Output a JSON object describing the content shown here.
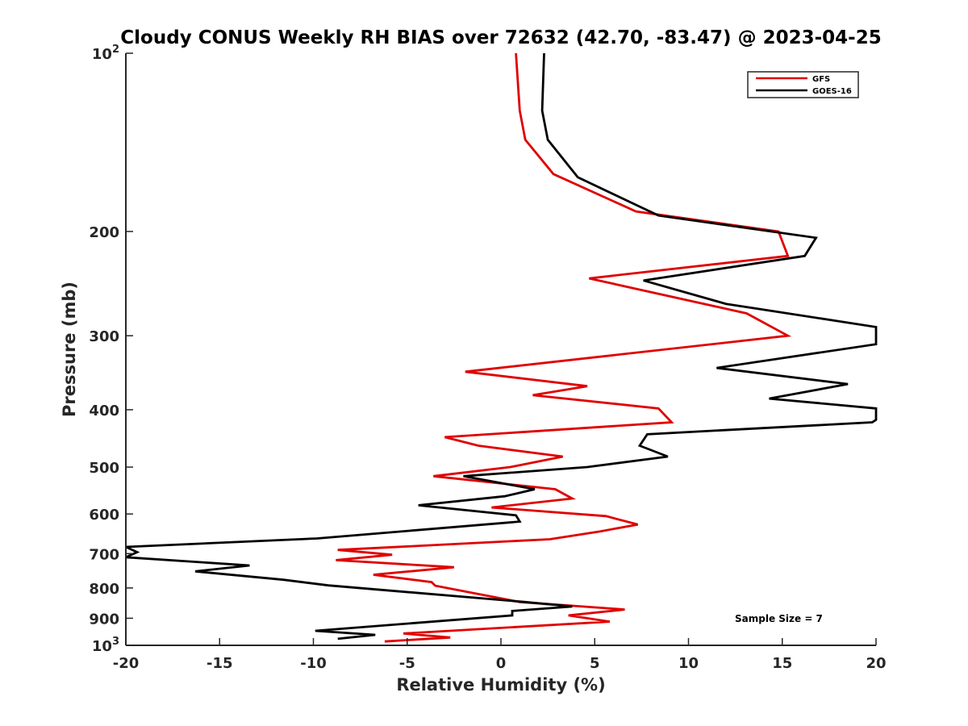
{
  "chart_data": {
    "type": "line",
    "title": "Cloudy CONUS Weekly RH BIAS over 72632 (42.70, -83.47) @ 2023-04-25",
    "xlabel": "Relative Humidity (%)",
    "ylabel": "Pressure (mb)",
    "xlim": [
      -20,
      20
    ],
    "ylim": [
      100,
      1000
    ],
    "y_scale": "log",
    "y_reversed": true,
    "grid": false,
    "legend_position": "top-right",
    "x_ticks": [
      "-20",
      "-15",
      "-10",
      "-5",
      "0",
      "5",
      "10",
      "15",
      "20"
    ],
    "y_ticks": [
      {
        "value": 100,
        "base": "10",
        "sup": "2"
      },
      {
        "value": 200,
        "label": "200"
      },
      {
        "value": 300,
        "label": "300"
      },
      {
        "value": 400,
        "label": "400"
      },
      {
        "value": 500,
        "label": "500"
      },
      {
        "value": 600,
        "label": "600"
      },
      {
        "value": 700,
        "label": "700"
      },
      {
        "value": 800,
        "label": "800"
      },
      {
        "value": 900,
        "label": "900"
      },
      {
        "value": 1000,
        "base": "10",
        "sup": "3"
      }
    ],
    "annotation": "Sample Size = 7",
    "series": [
      {
        "name": "GFS",
        "color": "#e00000",
        "points": [
          [
            0.8,
            100
          ],
          [
            1.0,
            125
          ],
          [
            1.3,
            140
          ],
          [
            2.8,
            160
          ],
          [
            7.2,
            185
          ],
          [
            14.8,
            200
          ],
          [
            15.3,
            220
          ],
          [
            4.7,
            240
          ],
          [
            13.1,
            275
          ],
          [
            15.3,
            300
          ],
          [
            -1.9,
            345
          ],
          [
            4.6,
            365
          ],
          [
            1.7,
            378
          ],
          [
            8.4,
            398
          ],
          [
            9.1,
            420
          ],
          [
            -3.0,
            445
          ],
          [
            -1.2,
            460
          ],
          [
            3.3,
            480
          ],
          [
            0.5,
            500
          ],
          [
            -3.6,
            518
          ],
          [
            2.9,
            545
          ],
          [
            3.8,
            565
          ],
          [
            -0.5,
            585
          ],
          [
            5.6,
            605
          ],
          [
            7.3,
            625
          ],
          [
            5.3,
            642
          ],
          [
            2.6,
            662
          ],
          [
            -8.7,
            690
          ],
          [
            -5.8,
            703
          ],
          [
            -8.8,
            718
          ],
          [
            -2.5,
            738
          ],
          [
            -6.8,
            760
          ],
          [
            -3.7,
            782
          ],
          [
            -3.5,
            793
          ],
          [
            1.0,
            845
          ],
          [
            6.6,
            870
          ],
          [
            3.6,
            890
          ],
          [
            5.8,
            912
          ],
          [
            -5.2,
            955
          ],
          [
            -2.7,
            970
          ],
          [
            -6.2,
            985
          ]
        ]
      },
      {
        "name": "GOES-16",
        "color": "#000000",
        "points": [
          [
            2.3,
            100
          ],
          [
            2.2,
            125
          ],
          [
            2.5,
            140
          ],
          [
            4.1,
            162
          ],
          [
            8.4,
            188
          ],
          [
            16.8,
            205
          ],
          [
            16.2,
            220
          ],
          [
            7.6,
            242
          ],
          [
            12.0,
            265
          ],
          [
            20.0,
            290
          ],
          [
            20.0,
            310
          ],
          [
            11.5,
            340
          ],
          [
            18.5,
            362
          ],
          [
            14.3,
            383
          ],
          [
            20.0,
            398
          ],
          [
            20.0,
            416
          ],
          [
            19.8,
            420
          ],
          [
            7.8,
            440
          ],
          [
            7.4,
            460
          ],
          [
            8.9,
            480
          ],
          [
            4.6,
            500
          ],
          [
            -2.0,
            518
          ],
          [
            1.8,
            545
          ],
          [
            0.2,
            560
          ],
          [
            -4.4,
            580
          ],
          [
            0.8,
            603
          ],
          [
            1.0,
            618
          ],
          [
            -9.8,
            660
          ],
          [
            -20.0,
            682
          ],
          [
            -19.4,
            696
          ],
          [
            -20.0,
            710
          ],
          [
            -13.4,
            733
          ],
          [
            -16.3,
            750
          ],
          [
            -11.6,
            775
          ],
          [
            -9.2,
            792
          ],
          [
            1.3,
            845
          ],
          [
            3.8,
            860
          ],
          [
            0.6,
            875
          ],
          [
            0.6,
            890
          ],
          [
            -9.9,
            945
          ],
          [
            -6.7,
            960
          ],
          [
            -8.7,
            975
          ]
        ]
      }
    ]
  }
}
